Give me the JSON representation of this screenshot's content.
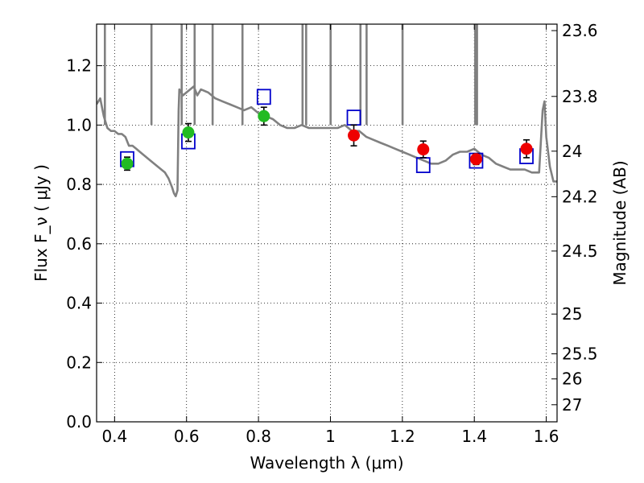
{
  "chart_data": {
    "type": "scatter",
    "xlabel": "Wavelength  λ (μm)",
    "ylabel": "Flux  F_ν  ( μJy )",
    "y2label": "Magnitude (AB)",
    "xlim": [
      0.35,
      1.63
    ],
    "ylim": [
      0.0,
      1.34
    ],
    "grid": true,
    "x_ticks": [
      0.4,
      0.6,
      0.8,
      1.0,
      1.2,
      1.4,
      1.6
    ],
    "x_tick_labels": [
      "0.4",
      "0.6",
      "0.8",
      "1",
      "1.2",
      "1.4",
      "1.6"
    ],
    "y_ticks": [
      0.0,
      0.2,
      0.4,
      0.6,
      0.8,
      1.0,
      1.2
    ],
    "y_tick_labels": [
      "0.0",
      "0.2",
      "0.4",
      "0.6",
      "0.8",
      "1.0",
      "1.2"
    ],
    "y2_tick_labels": [
      "23.6",
      "23.8",
      "24",
      "24.2",
      "24.5",
      "25",
      "25.5",
      "26",
      "27"
    ],
    "y2_tick_magnitudes": [
      23.6,
      23.8,
      24.0,
      24.2,
      24.5,
      25.0,
      25.5,
      26.0,
      27.0
    ],
    "series": [
      {
        "kind": "line",
        "color": "#808080",
        "x": [
          0.35,
          0.36,
          0.37,
          0.38,
          0.39,
          0.4,
          0.41,
          0.42,
          0.43,
          0.44,
          0.45,
          0.46,
          0.47,
          0.48,
          0.5,
          0.52,
          0.54,
          0.55,
          0.56,
          0.565,
          0.57,
          0.575,
          0.578,
          0.58,
          0.59,
          0.6,
          0.61,
          0.62,
          0.63,
          0.64,
          0.66,
          0.68,
          0.7,
          0.72,
          0.74,
          0.76,
          0.78,
          0.8,
          0.82,
          0.84,
          0.86,
          0.88,
          0.9,
          0.92,
          0.94,
          0.96,
          0.98,
          1.0,
          1.02,
          1.04,
          1.06,
          1.08,
          1.1,
          1.12,
          1.14,
          1.16,
          1.18,
          1.2,
          1.22,
          1.24,
          1.26,
          1.28,
          1.3,
          1.32,
          1.34,
          1.36,
          1.38,
          1.4,
          1.42,
          1.44,
          1.46,
          1.48,
          1.5,
          1.52,
          1.54,
          1.56,
          1.58,
          1.59,
          1.595,
          1.6,
          1.61,
          1.62,
          1.63
        ],
        "y": [
          1.07,
          1.09,
          1.03,
          0.99,
          0.98,
          0.98,
          0.97,
          0.97,
          0.96,
          0.93,
          0.93,
          0.92,
          0.91,
          0.9,
          0.88,
          0.86,
          0.84,
          0.82,
          0.79,
          0.77,
          0.76,
          0.78,
          1.05,
          1.12,
          1.1,
          1.11,
          1.12,
          1.13,
          1.1,
          1.12,
          1.11,
          1.09,
          1.08,
          1.07,
          1.06,
          1.05,
          1.06,
          1.04,
          1.03,
          1.02,
          1.0,
          0.99,
          0.99,
          1.0,
          0.99,
          0.99,
          0.99,
          0.99,
          0.99,
          1.0,
          0.98,
          0.98,
          0.96,
          0.95,
          0.94,
          0.93,
          0.92,
          0.91,
          0.9,
          0.89,
          0.88,
          0.87,
          0.87,
          0.88,
          0.9,
          0.91,
          0.91,
          0.92,
          0.9,
          0.89,
          0.87,
          0.86,
          0.85,
          0.85,
          0.85,
          0.84,
          0.84,
          1.05,
          1.08,
          0.96,
          0.86,
          0.81,
          0.81
        ]
      },
      {
        "kind": "spikes",
        "color": "#808080",
        "spikes": [
          {
            "x": 0.373,
            "y": 1.34
          },
          {
            "x": 0.5025,
            "y": 1.34
          },
          {
            "x": 0.5865,
            "y": 1.34
          },
          {
            "x": 0.6225,
            "y": 1.34
          },
          {
            "x": 0.6725,
            "y": 1.34
          },
          {
            "x": 0.7555,
            "y": 1.34
          },
          {
            "x": 0.9225,
            "y": 1.34
          },
          {
            "x": 0.9325,
            "y": 1.34
          },
          {
            "x": 1.0005,
            "y": 1.34
          },
          {
            "x": 1.2005,
            "y": 1.34
          },
          {
            "x": 1.0835,
            "y": 1.34
          },
          {
            "x": 1.1005,
            "y": 1.34
          },
          {
            "x": 1.4025,
            "y": 1.34
          },
          {
            "x": 1.4075,
            "y": 1.34
          }
        ]
      },
      {
        "kind": "squares",
        "color": "#0000cc",
        "x": [
          0.435,
          0.605,
          0.815,
          1.065,
          1.258,
          1.405,
          1.545
        ],
        "y": [
          0.885,
          0.945,
          1.095,
          1.025,
          0.865,
          0.88,
          0.895
        ]
      },
      {
        "kind": "points",
        "color": "#22bb22",
        "x": [
          0.435,
          0.605,
          0.815
        ],
        "y": [
          0.87,
          0.975,
          1.03
        ],
        "yerr": [
          0.022,
          0.03,
          0.03
        ]
      },
      {
        "kind": "points",
        "color": "#ee0000",
        "x": [
          1.065,
          1.258,
          1.405,
          1.545
        ],
        "y": [
          0.965,
          0.918,
          0.885,
          0.92
        ],
        "yerr": [
          0.035,
          0.028,
          0.018,
          0.03
        ]
      }
    ]
  }
}
